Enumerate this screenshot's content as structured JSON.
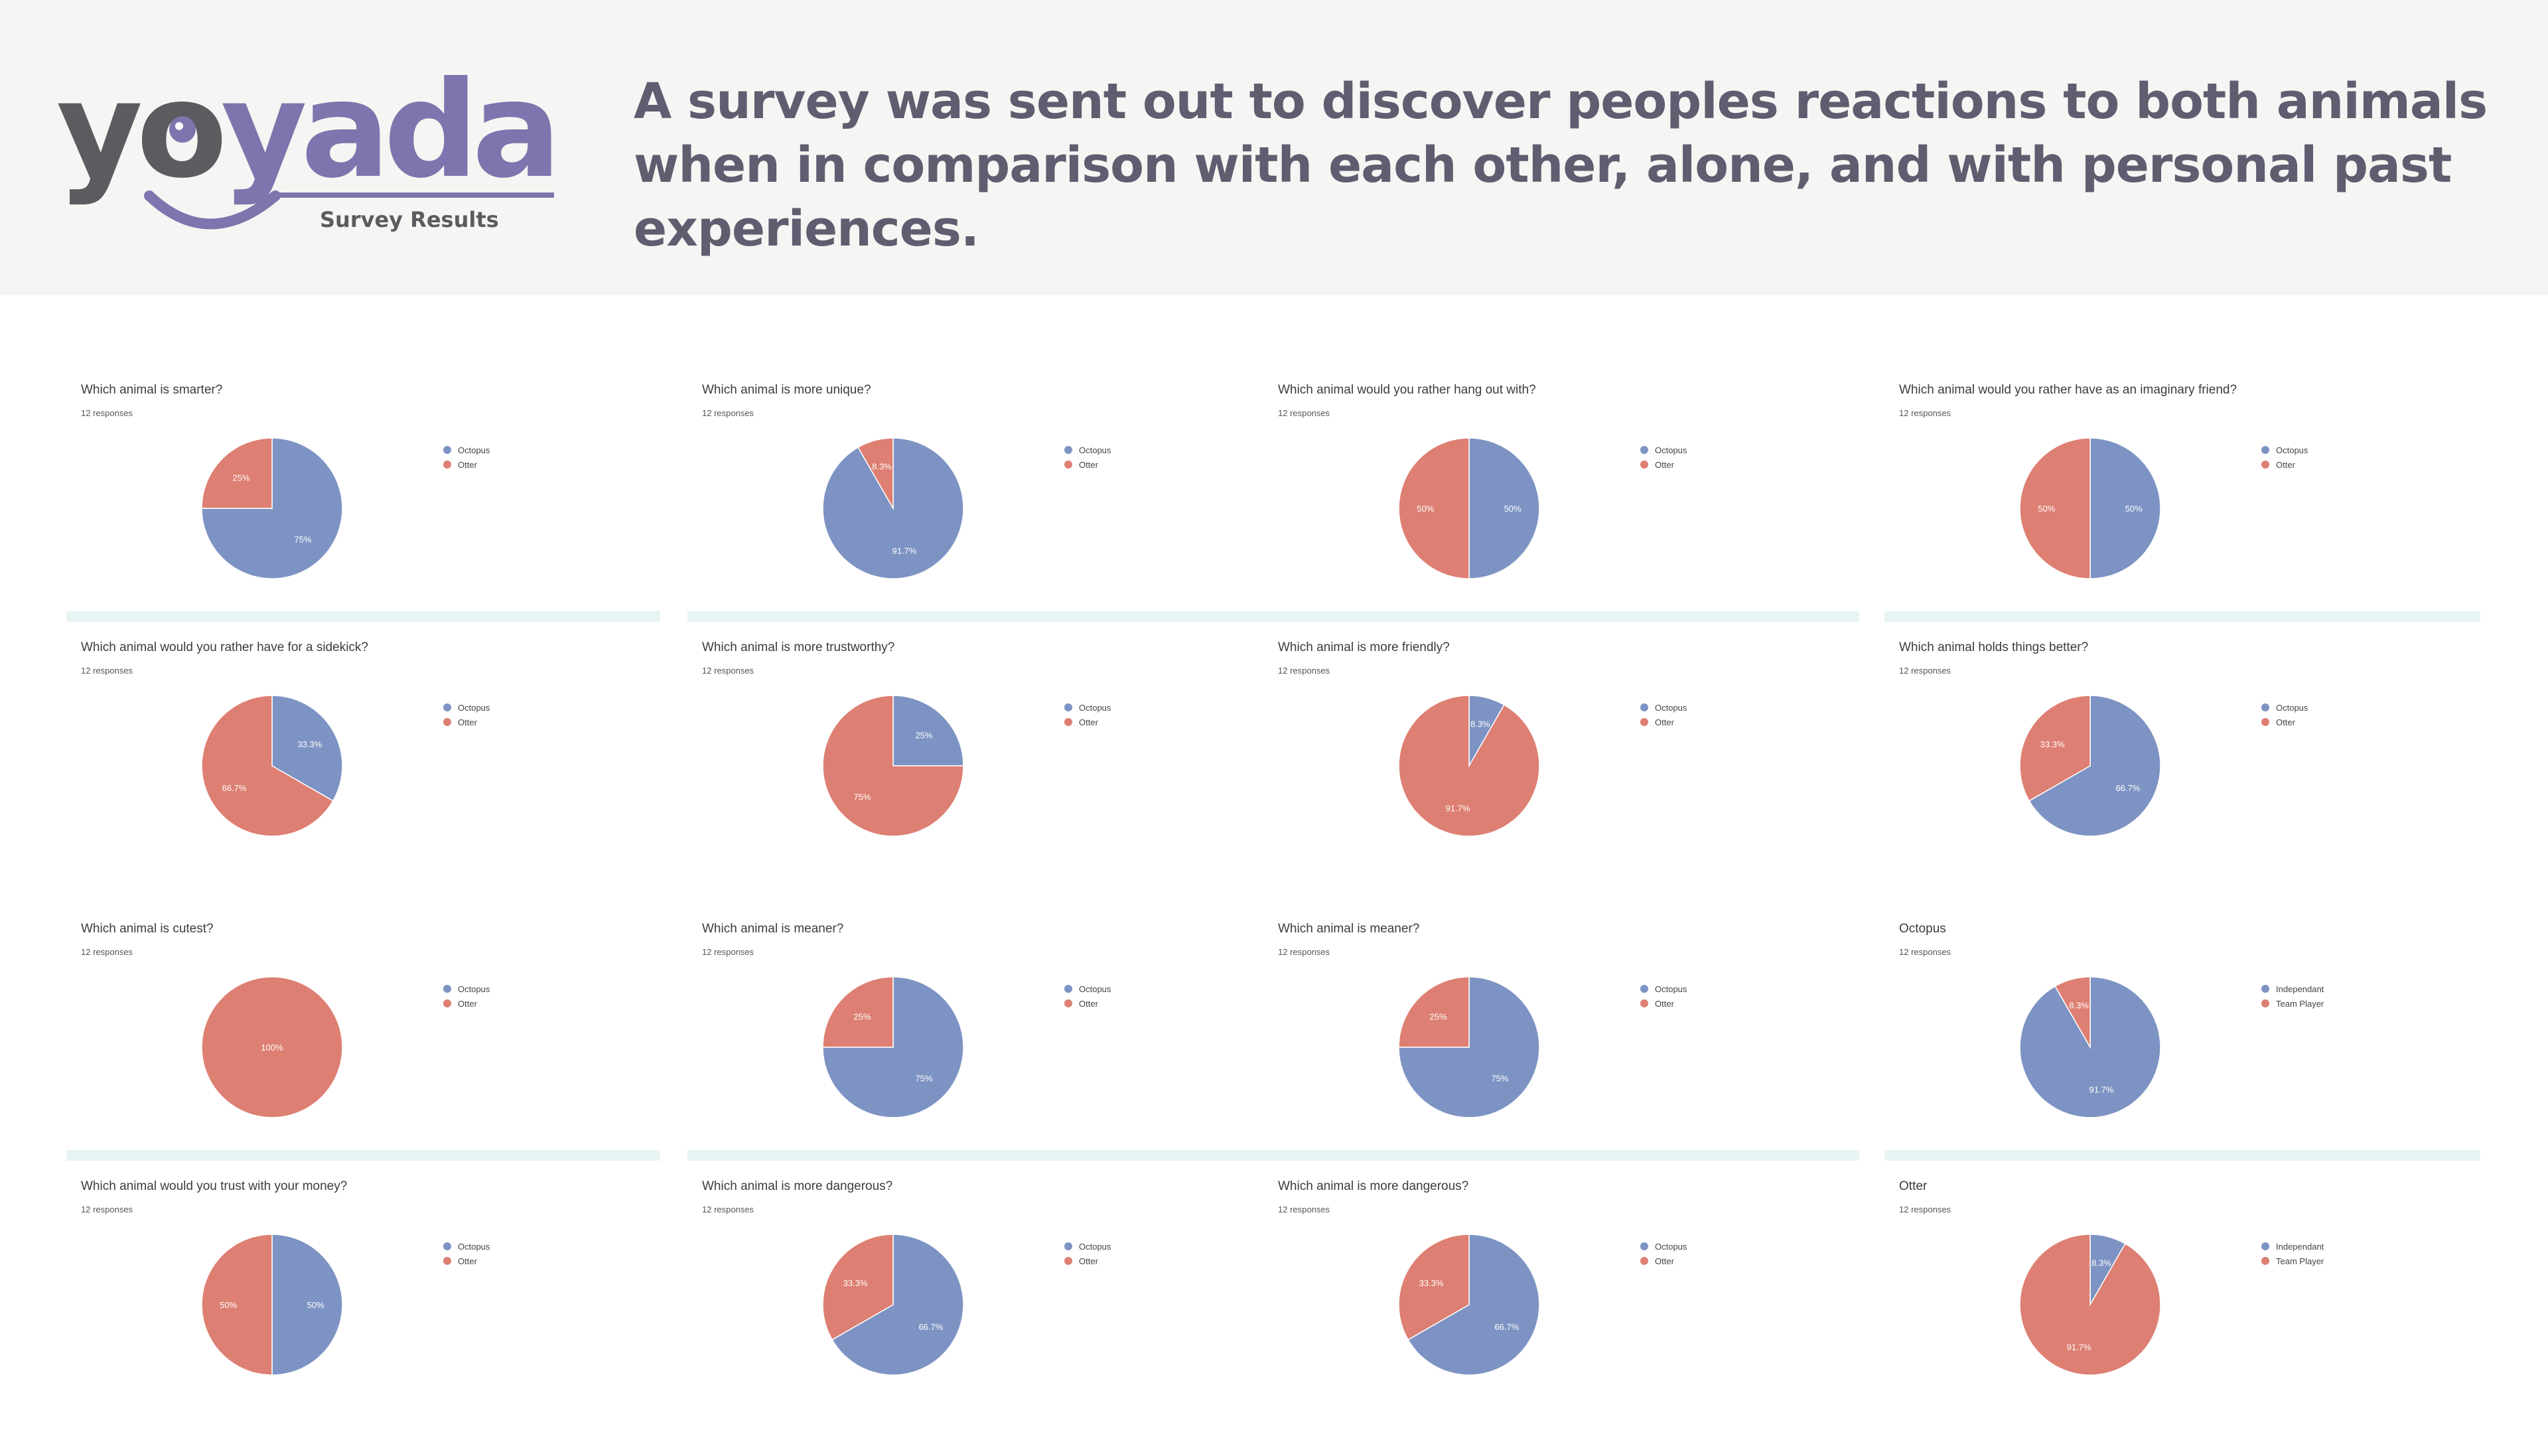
{
  "brand": {
    "logo_text": "yoyada",
    "tagline": "Survey Results"
  },
  "headline": "A survey was sent out to discover peoples reactions to both animals when in comparison with each other, alone, and with personal past experiences.",
  "colors": {
    "octopus": "#7d93c3",
    "otter": "#dd7f72",
    "logo_grey": "#5c5b5f",
    "logo_purple": "#7d75ad",
    "header_bg": "#f6f5f3",
    "divider": "#e8f4f4"
  },
  "chart_data": [
    {
      "type": "pie",
      "title": "Which animal is smarter?",
      "subtitle": "12 responses",
      "labels": [
        "Octopus",
        "Otter"
      ],
      "values": [
        75,
        25
      ],
      "data_labels": [
        "75%",
        "25%"
      ]
    },
    {
      "type": "pie",
      "title": "Which animal is more unique?",
      "subtitle": "12 responses",
      "labels": [
        "Octopus",
        "Otter"
      ],
      "values": [
        91.7,
        8.3
      ],
      "data_labels": [
        "91.7%",
        "8.3%"
      ]
    },
    {
      "type": "pie",
      "title": "Which animal would you rather hang out with?",
      "subtitle": "12 responses",
      "labels": [
        "Octopus",
        "Otter"
      ],
      "values": [
        50,
        50
      ],
      "data_labels": [
        "50%",
        "50%"
      ]
    },
    {
      "type": "pie",
      "title": "Which animal would you rather have as an imaginary friend?",
      "subtitle": "12 responses",
      "labels": [
        "Octopus",
        "Otter"
      ],
      "values": [
        50,
        50
      ],
      "data_labels": [
        "50%",
        "50%"
      ]
    },
    {
      "type": "pie",
      "title": "Which animal would you rather have for a sidekick?",
      "subtitle": "12 responses",
      "labels": [
        "Octopus",
        "Otter"
      ],
      "values": [
        33.3,
        66.7
      ],
      "data_labels": [
        "33.3%",
        "66.7%"
      ]
    },
    {
      "type": "pie",
      "title": "Which animal is more trustworthy?",
      "subtitle": "12 responses",
      "labels": [
        "Octopus",
        "Otter"
      ],
      "values": [
        25,
        75
      ],
      "data_labels": [
        "25%",
        "75%"
      ]
    },
    {
      "type": "pie",
      "title": "Which animal is more friendly?",
      "subtitle": "12 responses",
      "labels": [
        "Octopus",
        "Otter"
      ],
      "values": [
        8.3,
        91.7
      ],
      "data_labels": [
        "8.3%",
        "91.7%"
      ]
    },
    {
      "type": "pie",
      "title": "Which animal holds things better?",
      "subtitle": "12 responses",
      "labels": [
        "Octopus",
        "Otter"
      ],
      "values": [
        66.7,
        33.3
      ],
      "data_labels": [
        "66.7%",
        "33.3%"
      ]
    },
    {
      "type": "pie",
      "title": "Which animal is cutest?",
      "subtitle": "12 responses",
      "labels": [
        "Octopus",
        "Otter"
      ],
      "values": [
        0,
        100
      ],
      "data_labels": [
        "",
        "100%"
      ]
    },
    {
      "type": "pie",
      "title": "Which animal is meaner?",
      "subtitle": "12 responses",
      "labels": [
        "Octopus",
        "Otter"
      ],
      "values": [
        75,
        25
      ],
      "data_labels": [
        "75%",
        "25%"
      ]
    },
    {
      "type": "pie",
      "title": "Which animal is meaner?",
      "subtitle": "12 responses",
      "labels": [
        "Octopus",
        "Otter"
      ],
      "values": [
        75,
        25
      ],
      "data_labels": [
        "75%",
        "25%"
      ]
    },
    {
      "type": "pie",
      "title": "Octopus",
      "subtitle": "12 responses",
      "labels": [
        "Independant",
        "Team Player"
      ],
      "values": [
        91.7,
        8.3
      ],
      "data_labels": [
        "91.7%",
        "8.3%"
      ]
    },
    {
      "type": "pie",
      "title": "Which animal would you trust with your money?",
      "subtitle": "12 responses",
      "labels": [
        "Octopus",
        "Otter"
      ],
      "values": [
        50,
        50
      ],
      "data_labels": [
        "50%",
        "50%"
      ]
    },
    {
      "type": "pie",
      "title": "Which animal is more dangerous?",
      "subtitle": "12 responses",
      "labels": [
        "Octopus",
        "Otter"
      ],
      "values": [
        66.7,
        33.3
      ],
      "data_labels": [
        "66.7%",
        "33.3%"
      ]
    },
    {
      "type": "pie",
      "title": "Which animal is more dangerous?",
      "subtitle": "12 responses",
      "labels": [
        "Octopus",
        "Otter"
      ],
      "values": [
        66.7,
        33.3
      ],
      "data_labels": [
        "66.7%",
        "33.3%"
      ]
    },
    {
      "type": "pie",
      "title": "Otter",
      "subtitle": "12 responses",
      "labels": [
        "Independant",
        "Team Player"
      ],
      "values": [
        8.3,
        91.7
      ],
      "data_labels": [
        "8.3%",
        "91.7%"
      ]
    }
  ]
}
